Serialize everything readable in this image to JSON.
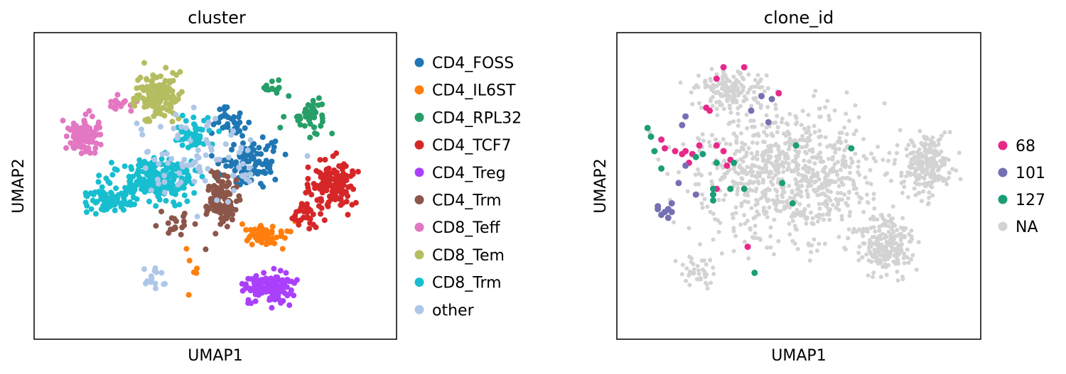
{
  "chart_data": [
    {
      "type": "scatter",
      "title": "cluster",
      "xlabel": "UMAP1",
      "ylabel": "UMAP2",
      "xticks": [],
      "yticks": [],
      "grid": false,
      "legend_position": "right",
      "xlim": [
        0,
        100
      ],
      "ylim": [
        0,
        100
      ],
      "series": [
        {
          "name": "CD4_FOSS",
          "color": "#1f77b4",
          "regions": [
            [
              61,
              57,
              12,
              11,
              90
            ],
            [
              55,
              72,
              8,
              6,
              35
            ]
          ]
        },
        {
          "name": "CD4_IL6ST",
          "color": "#ff7f0e",
          "regions": [
            [
              65,
              33,
              9,
              5,
              55
            ],
            [
              43,
              21,
              3,
              13,
              6
            ]
          ]
        },
        {
          "name": "CD4_RPL32",
          "color": "#279e68",
          "regions": [
            [
              78,
              74,
              8,
              8,
              45
            ],
            [
              66,
              84,
              8,
              4,
              14
            ]
          ]
        },
        {
          "name": "CD4_TCF7",
          "color": "#d62728",
          "regions": [
            [
              84,
              50,
              9,
              11,
              140
            ],
            [
              76,
              40,
              5,
              6,
              28
            ]
          ]
        },
        {
          "name": "CD4_Treg",
          "color": "#aa40fc",
          "regions": [
            [
              66,
              15,
              9,
              6,
              140
            ]
          ]
        },
        {
          "name": "CD4_Trm",
          "color": "#8c564b",
          "regions": [
            [
              52,
              45,
              6,
              13,
              110
            ],
            [
              38,
              37,
              8,
              5,
              20
            ]
          ]
        },
        {
          "name": "CD8_Teff",
          "color": "#e377c2",
          "regions": [
            [
              12,
              67,
              6,
              8,
              100
            ],
            [
              22,
              78,
              5,
              4,
              15
            ]
          ]
        },
        {
          "name": "CD8_Tem",
          "color": "#b5bd61",
          "regions": [
            [
              33,
              81,
              9,
              10,
              140
            ]
          ]
        },
        {
          "name": "CD8_Trm",
          "color": "#17becf",
          "regions": [
            [
              33,
              52,
              15,
              9,
              230
            ],
            [
              19,
              45,
              9,
              6,
              60
            ],
            [
              44,
              68,
              7,
              8,
              45
            ]
          ]
        },
        {
          "name": "other",
          "color": "#aec7e8",
          "regions": [
            [
              48,
              60,
              26,
              22,
              80
            ],
            [
              32,
              17,
              4,
              6,
              14
            ]
          ]
        }
      ]
    },
    {
      "type": "scatter",
      "title": "clone_id",
      "xlabel": "UMAP1",
      "ylabel": "UMAP2",
      "xticks": [],
      "yticks": [],
      "grid": false,
      "legend_position": "right",
      "xlim": [
        0,
        100
      ],
      "ylim": [
        0,
        100
      ],
      "series": [
        {
          "name": "68",
          "color": "#e7298a",
          "points": [
            [
              28,
              91
            ],
            [
              34,
              91
            ],
            [
              26,
              87
            ],
            [
              44,
              82
            ],
            [
              23,
              77
            ],
            [
              24,
              76
            ],
            [
              10,
              66
            ],
            [
              11,
              63
            ],
            [
              14,
              62
            ],
            [
              16,
              61
            ],
            [
              17,
              62
            ],
            [
              19,
              61
            ],
            [
              21,
              64
            ],
            [
              26,
              64
            ],
            [
              28,
              62
            ],
            [
              30,
              59
            ],
            [
              29,
              57
            ],
            [
              18,
              58
            ],
            [
              26,
              49
            ],
            [
              35,
              29
            ]
          ]
        },
        {
          "name": "101",
          "color": "#7570b3",
          "points": [
            [
              39,
              81
            ],
            [
              42,
              80
            ],
            [
              17,
              74
            ],
            [
              16,
              71
            ],
            [
              36,
              76
            ],
            [
              41,
              72
            ],
            [
              17,
              57
            ],
            [
              15,
              51
            ],
            [
              13,
              44
            ],
            [
              12,
              42
            ],
            [
              9,
              43
            ],
            [
              9,
              42
            ],
            [
              11,
              41
            ],
            [
              10,
              40
            ],
            [
              12,
              39
            ],
            [
              13,
              41
            ],
            [
              20,
              47
            ]
          ]
        },
        {
          "name": "127",
          "color": "#1b9e77",
          "points": [
            [
              6,
              70
            ],
            [
              7,
              67
            ],
            [
              8,
              62
            ],
            [
              10,
              56
            ],
            [
              20,
              60
            ],
            [
              22,
              61
            ],
            [
              26,
              58
            ],
            [
              31,
              58
            ],
            [
              30,
              49
            ],
            [
              25,
              49
            ],
            [
              25,
              47
            ],
            [
              25,
              45
            ],
            [
              34,
              49
            ],
            [
              45,
              51
            ],
            [
              48,
              44
            ],
            [
              49,
              64
            ],
            [
              65,
              63
            ],
            [
              37,
              20
            ]
          ]
        },
        {
          "name": "NA",
          "color": "#d3d3d3",
          "regions": [
            [
              48,
              54,
              36,
              30,
              800
            ],
            [
              75,
              30,
              11,
              13,
              200
            ],
            [
              87,
              57,
              9,
              13,
              200
            ],
            [
              30,
              83,
              14,
              8,
              150
            ],
            [
              20,
              20,
              8,
              8,
              40
            ]
          ]
        }
      ]
    }
  ]
}
